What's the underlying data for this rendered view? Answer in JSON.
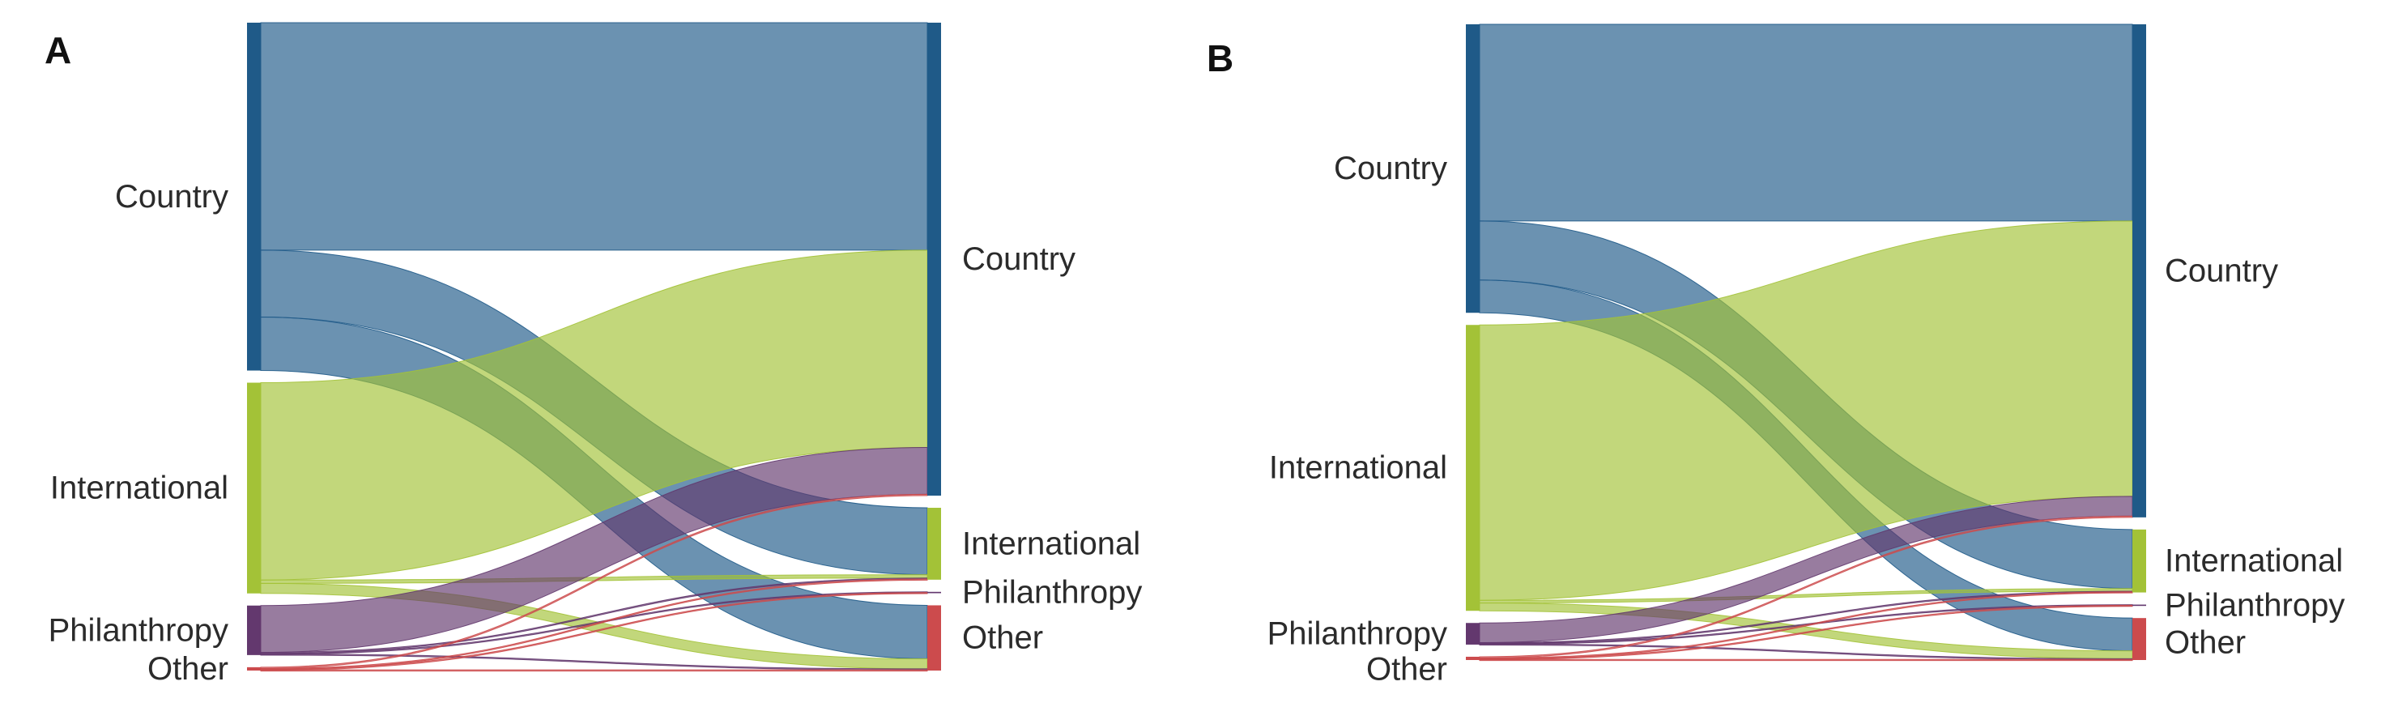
{
  "colors": {
    "Country": "#1f5a88",
    "International": "#a3c237",
    "Philanthropy": "#63386e",
    "Other": "#cc4b4d"
  },
  "chart_data": [
    {
      "type": "sankey",
      "panel_label": "A",
      "sources": [
        "Country",
        "International",
        "Philanthropy",
        "Other"
      ],
      "targets": [
        "Country",
        "International",
        "Philanthropy",
        "Other"
      ],
      "links": [
        {
          "source": "Country",
          "target": "Country",
          "value": 34.0
        },
        {
          "source": "Country",
          "target": "International",
          "value": 10.0
        },
        {
          "source": "Country",
          "target": "Other",
          "value": 8.0
        },
        {
          "source": "International",
          "target": "Country",
          "value": 29.5
        },
        {
          "source": "International",
          "target": "International",
          "value": 0.5
        },
        {
          "source": "International",
          "target": "Other",
          "value": 1.5
        },
        {
          "source": "Philanthropy",
          "target": "Country",
          "value": 7.0
        },
        {
          "source": "Philanthropy",
          "target": "International",
          "value": 0.15
        },
        {
          "source": "Philanthropy",
          "target": "Philanthropy",
          "value": 0.1
        },
        {
          "source": "Philanthropy",
          "target": "Other",
          "value": 0.15
        },
        {
          "source": "Other",
          "target": "Country",
          "value": 0.2
        },
        {
          "source": "Other",
          "target": "International",
          "value": 0.1
        },
        {
          "source": "Other",
          "target": "Philanthropy",
          "value": 0.1
        },
        {
          "source": "Other",
          "target": "Other",
          "value": 0.1
        }
      ]
    },
    {
      "type": "sankey",
      "panel_label": "B",
      "sources": [
        "Country",
        "International",
        "Philanthropy",
        "Other"
      ],
      "targets": [
        "Country",
        "International",
        "Philanthropy",
        "Other"
      ],
      "links": [
        {
          "source": "Country",
          "target": "Country",
          "value": 30.0
        },
        {
          "source": "Country",
          "target": "International",
          "value": 9.0
        },
        {
          "source": "Country",
          "target": "Other",
          "value": 5.0
        },
        {
          "source": "International",
          "target": "Country",
          "value": 42.0
        },
        {
          "source": "International",
          "target": "International",
          "value": 0.4
        },
        {
          "source": "International",
          "target": "Other",
          "value": 1.2
        },
        {
          "source": "Philanthropy",
          "target": "Country",
          "value": 3.0
        },
        {
          "source": "Philanthropy",
          "target": "International",
          "value": 0.1
        },
        {
          "source": "Philanthropy",
          "target": "Philanthropy",
          "value": 0.1
        },
        {
          "source": "Philanthropy",
          "target": "Other",
          "value": 0.1
        },
        {
          "source": "Other",
          "target": "Country",
          "value": 0.2
        },
        {
          "source": "Other",
          "target": "International",
          "value": 0.1
        },
        {
          "source": "Other",
          "target": "Philanthropy",
          "value": 0.1
        },
        {
          "source": "Other",
          "target": "Other",
          "value": 0.1
        }
      ]
    }
  ]
}
